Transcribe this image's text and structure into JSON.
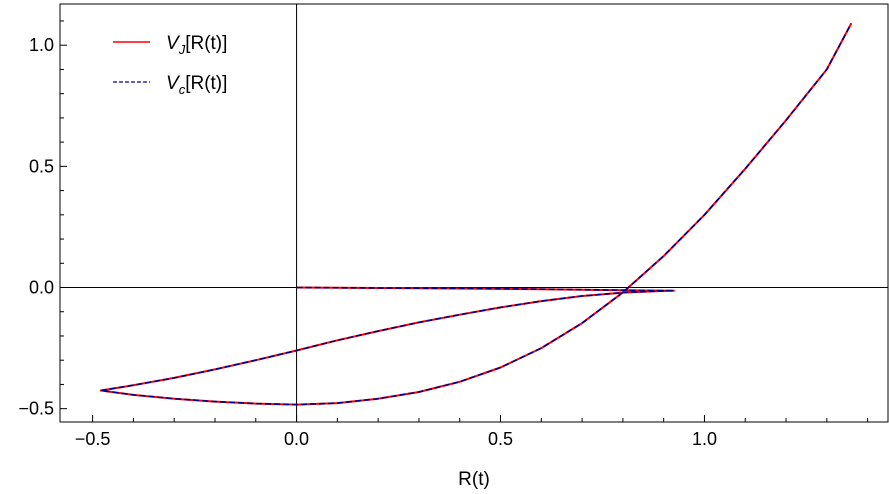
{
  "chart_data": {
    "type": "line",
    "title": "",
    "xlabel": "R(t)",
    "ylabel": "",
    "xlim": [
      -0.58,
      1.45
    ],
    "ylim": [
      -0.555,
      1.17
    ],
    "grid": false,
    "legend_position": "top-left",
    "x_ticks": [
      {
        "value": -0.5,
        "label": "−0.5"
      },
      {
        "value": 0.0,
        "label": "0.0"
      },
      {
        "value": 0.5,
        "label": "0.5"
      },
      {
        "value": 1.0,
        "label": "1.0"
      }
    ],
    "y_ticks": [
      {
        "value": -0.5,
        "label": "−0.5"
      },
      {
        "value": 0.0,
        "label": "0.0"
      },
      {
        "value": 0.5,
        "label": "0.5"
      },
      {
        "value": 1.0,
        "label": "1.0"
      }
    ],
    "series": [
      {
        "name": "V_J[R(t)]",
        "legend_main": "V",
        "legend_sub": "J",
        "legend_rest": "[R(t)]",
        "color": "#ff0000",
        "style": "solid",
        "x": [
          0.0,
          0.2,
          0.4,
          0.6,
          0.8,
          0.925,
          0.9,
          0.8,
          0.7,
          0.6,
          0.5,
          0.4,
          0.3,
          0.2,
          0.1,
          0.0,
          -0.1,
          -0.2,
          -0.3,
          -0.4,
          -0.48,
          -0.4,
          -0.3,
          -0.2,
          -0.1,
          0.0,
          0.1,
          0.2,
          0.3,
          0.4,
          0.5,
          0.6,
          0.7,
          0.8,
          0.9,
          1.0,
          1.1,
          1.2,
          1.3,
          1.36
        ],
        "y": [
          0.0,
          -0.002,
          -0.004,
          -0.007,
          -0.011,
          -0.013,
          -0.014,
          -0.021,
          -0.035,
          -0.056,
          -0.082,
          -0.112,
          -0.144,
          -0.18,
          -0.218,
          -0.26,
          -0.3,
          -0.338,
          -0.373,
          -0.403,
          -0.425,
          -0.443,
          -0.459,
          -0.471,
          -0.479,
          -0.483,
          -0.477,
          -0.459,
          -0.431,
          -0.389,
          -0.33,
          -0.25,
          -0.147,
          -0.02,
          0.13,
          0.3,
          0.49,
          0.69,
          0.9,
          1.09
        ]
      },
      {
        "name": "V_c[R(t)]",
        "legend_main": "V",
        "legend_sub": "c",
        "legend_rest": "[R(t)]",
        "color": "#00008b",
        "style": "dashed",
        "x": [
          0.0,
          0.2,
          0.4,
          0.6,
          0.8,
          0.925,
          0.9,
          0.8,
          0.7,
          0.6,
          0.5,
          0.4,
          0.3,
          0.2,
          0.1,
          0.0,
          -0.1,
          -0.2,
          -0.3,
          -0.4,
          -0.48,
          -0.4,
          -0.3,
          -0.2,
          -0.1,
          0.0,
          0.1,
          0.2,
          0.3,
          0.4,
          0.5,
          0.6,
          0.7,
          0.8,
          0.9,
          1.0,
          1.1,
          1.2,
          1.3,
          1.36
        ],
        "y": [
          0.0,
          -0.002,
          -0.004,
          -0.007,
          -0.011,
          -0.013,
          -0.014,
          -0.021,
          -0.035,
          -0.056,
          -0.082,
          -0.112,
          -0.144,
          -0.18,
          -0.218,
          -0.26,
          -0.3,
          -0.338,
          -0.373,
          -0.403,
          -0.425,
          -0.443,
          -0.459,
          -0.471,
          -0.479,
          -0.483,
          -0.477,
          -0.459,
          -0.431,
          -0.389,
          -0.33,
          -0.25,
          -0.147,
          -0.02,
          0.13,
          0.3,
          0.49,
          0.69,
          0.9,
          1.09
        ]
      }
    ]
  }
}
